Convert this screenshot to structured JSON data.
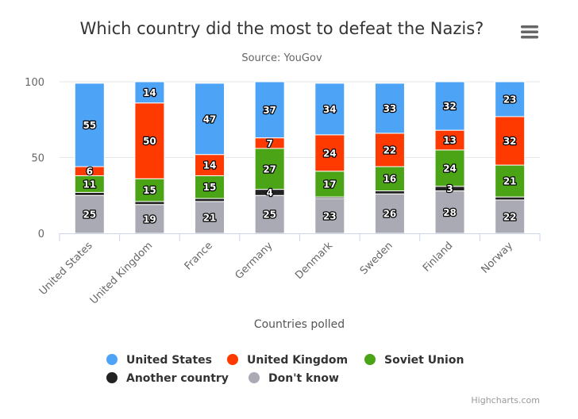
{
  "chart_data": {
    "type": "bar",
    "stacked": true,
    "title": "Which country did the most to defeat the Nazis?",
    "subtitle": "Source: YouGov",
    "xlabel": "Countries polled",
    "ylabel": "",
    "ylim": [
      0,
      100
    ],
    "yticks": [
      0,
      50,
      100
    ],
    "grid": true,
    "legend_position": "bottom",
    "categories": [
      "United States",
      "United Kingdom",
      "France",
      "Germany",
      "Denmark",
      "Sweden",
      "Finland",
      "Norway"
    ],
    "series": [
      {
        "name": "United States",
        "color": "#4da3f5",
        "values": [
          55,
          14,
          47,
          37,
          34,
          33,
          32,
          23
        ]
      },
      {
        "name": "United Kingdom",
        "color": "#ff3a00",
        "values": [
          6,
          50,
          14,
          7,
          24,
          22,
          13,
          32
        ]
      },
      {
        "name": "Soviet Union",
        "color": "#4ba316",
        "values": [
          11,
          15,
          15,
          27,
          17,
          16,
          24,
          21
        ]
      },
      {
        "name": "Another country",
        "color": "#222222",
        "values": [
          2,
          2,
          2,
          4,
          1,
          2,
          3,
          2
        ]
      },
      {
        "name": "Don't know",
        "color": "#aaaab4",
        "values": [
          25,
          19,
          21,
          25,
          23,
          26,
          28,
          22
        ]
      }
    ],
    "data_label_threshold": 3
  },
  "credits": "Highcharts.com",
  "icons": {
    "menu": "hamburger-menu-icon"
  }
}
